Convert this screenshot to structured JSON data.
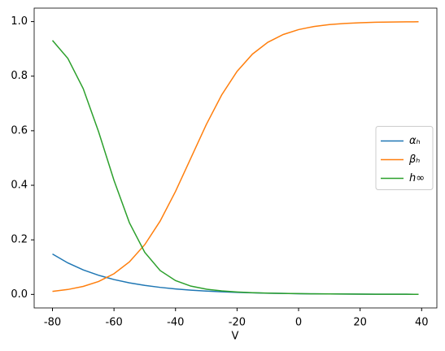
{
  "chart_data": {
    "type": "line",
    "xlabel": "V",
    "x": [
      -80,
      -75,
      -70,
      -65,
      -60,
      -55,
      -50,
      -45,
      -40,
      -35,
      -30,
      -25,
      -20,
      -15,
      -10,
      -5,
      0,
      5,
      10,
      15,
      20,
      25,
      30,
      35,
      39
    ],
    "series": [
      {
        "name": "αₕ",
        "color": "#1f77b4",
        "values": [
          0.148,
          0.1154,
          0.0899,
          0.07,
          0.0545,
          0.0425,
          0.0331,
          0.0258,
          0.0201,
          0.0156,
          0.0122,
          0.0095,
          0.0074,
          0.0057,
          0.0045,
          0.0035,
          0.0027,
          0.0021,
          0.0016,
          0.0013,
          0.001,
          0.0008,
          0.0006,
          0.0005,
          0.0004
        ]
      },
      {
        "name": "βₕ",
        "color": "#ff7f0e",
        "values": [
          0.011,
          0.018,
          0.0293,
          0.0474,
          0.0759,
          0.1192,
          0.1824,
          0.2689,
          0.3775,
          0.5,
          0.6225,
          0.7311,
          0.8176,
          0.8808,
          0.9241,
          0.9526,
          0.9707,
          0.982,
          0.989,
          0.9933,
          0.9959,
          0.9975,
          0.9985,
          0.9991,
          0.9994
        ]
      },
      {
        "name": "h∞",
        "color": "#2ca02c",
        "values": [
          0.931,
          0.865,
          0.754,
          0.596,
          0.418,
          0.263,
          0.154,
          0.0875,
          0.0506,
          0.0303,
          0.0192,
          0.0128,
          0.009,
          0.0064,
          0.0048,
          0.0037,
          0.0028,
          0.0021,
          0.0016,
          0.0013,
          0.001,
          0.0008,
          0.0006,
          0.0005,
          0.0004
        ]
      }
    ],
    "xlim": [
      -85.95,
      44.95
    ],
    "ylim": [
      -0.0496,
      1.0494
    ],
    "xticks": [
      -80,
      -60,
      -40,
      -20,
      0,
      20,
      40
    ],
    "yticks": [
      {
        "value": 0,
        "label": "0.0"
      },
      {
        "value": 0.2,
        "label": "0.2"
      },
      {
        "value": 0.4,
        "label": "0.4"
      },
      {
        "value": 0.6,
        "label": "0.6"
      },
      {
        "value": 0.8,
        "label": "0.8"
      },
      {
        "value": 1,
        "label": "1.0"
      }
    ],
    "legend": "center right"
  }
}
